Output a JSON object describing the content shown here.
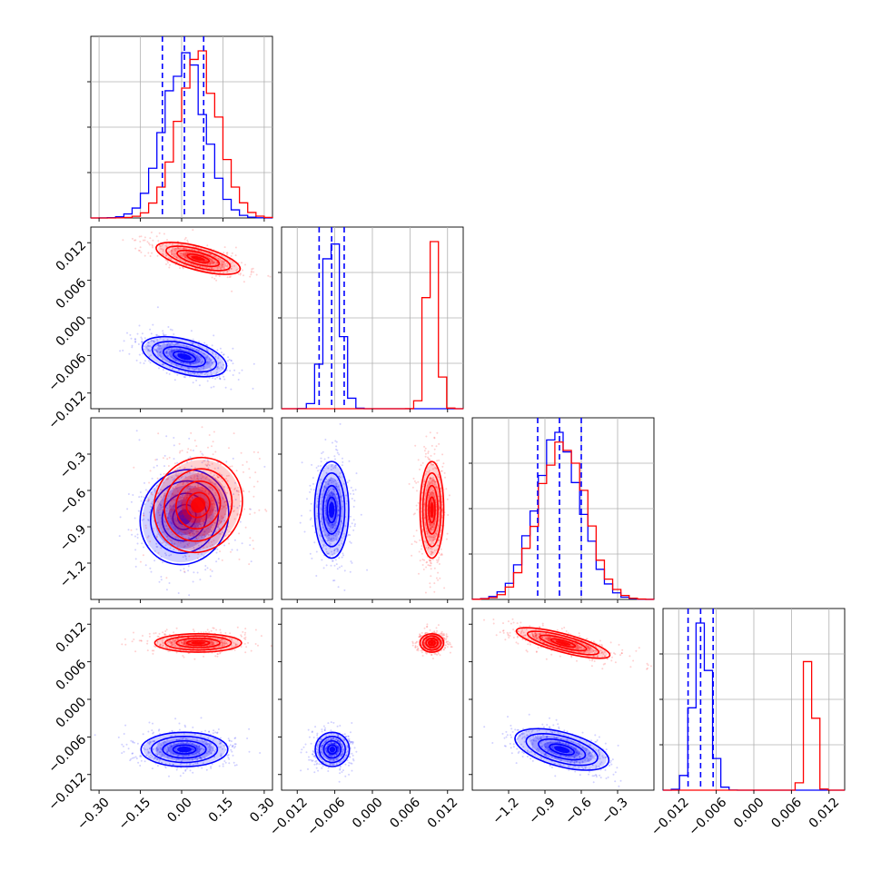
{
  "chart_data": {
    "type": "corner",
    "series": [
      {
        "name": "",
        "color": "#0000ff"
      },
      {
        "name": "",
        "color": "#ff0000"
      }
    ],
    "parameters": [
      {
        "range": [
          -0.33,
          0.33
        ],
        "ticks": [
          -0.3,
          -0.15,
          0.0,
          0.15,
          0.3
        ],
        "tick_labels": [
          "−0.30",
          "−0.15",
          "0.00",
          "0.15",
          "0.30"
        ]
      },
      {
        "range": [
          -0.0145,
          0.0145
        ],
        "ticks": [
          -0.012,
          -0.006,
          0.0,
          0.006,
          0.012
        ],
        "tick_labels": [
          "−0.012",
          "−0.006",
          "0.000",
          "0.006",
          "0.012"
        ]
      },
      {
        "range": [
          -1.5,
          0.0
        ],
        "ticks": [
          -1.2,
          -0.9,
          -0.6,
          -0.3
        ],
        "tick_labels": [
          "−1.2",
          "−0.9",
          "−0.6",
          "−0.3"
        ]
      },
      {
        "range": [
          -0.0145,
          0.0145
        ],
        "ticks": [
          -0.012,
          -0.006,
          0.0,
          0.006,
          0.012
        ],
        "tick_labels": [
          "−0.012",
          "−0.006",
          "0.000",
          "0.006",
          "0.012"
        ]
      }
    ],
    "quantiles_blue": [
      [
        -0.07,
        0.01,
        0.08
      ],
      [
        -0.0085,
        -0.0065,
        -0.0045
      ],
      [
        -0.96,
        -0.78,
        -0.6
      ],
      [
        -0.0105,
        -0.0085,
        -0.0065
      ]
    ],
    "distributions": {
      "blue": [
        {
          "mean": 0.01,
          "sd": 0.075
        },
        {
          "mean": -0.0064,
          "sd": 0.0013
        },
        {
          "mean": -0.79,
          "sd": 0.19
        },
        {
          "mean": -0.0083,
          "sd": 0.0013
        }
      ],
      "red": [
        {
          "mean": 0.06,
          "sd": 0.075
        },
        {
          "mean": 0.0095,
          "sd": 0.0009
        },
        {
          "mean": -0.76,
          "sd": 0.19
        },
        {
          "mean": 0.009,
          "sd": 0.0007
        }
      ]
    },
    "panels_2d": [
      {
        "row": 1,
        "col": 0,
        "blue_center": [
          0.01,
          -0.0062
        ],
        "red_center": [
          0.06,
          0.0095
        ]
      },
      {
        "row": 2,
        "col": 0,
        "blue_center": [
          0.01,
          -0.82
        ],
        "red_center": [
          0.06,
          -0.72
        ]
      },
      {
        "row": 2,
        "col": 1,
        "blue_center": [
          -0.0065,
          -0.76
        ],
        "red_center": [
          0.0095,
          -0.76
        ]
      },
      {
        "row": 3,
        "col": 0,
        "blue_center": [
          0.01,
          -0.008
        ],
        "red_center": [
          0.06,
          0.009
        ]
      },
      {
        "row": 3,
        "col": 1,
        "blue_center": [
          -0.0064,
          -0.008
        ],
        "red_center": [
          0.0095,
          0.009
        ]
      },
      {
        "row": 3,
        "col": 2,
        "blue_center": [
          -0.76,
          -0.008
        ],
        "red_center": [
          -0.75,
          0.009
        ]
      }
    ],
    "grid": true,
    "legend": "none",
    "title": "",
    "xlabel": "",
    "ylabel": ""
  }
}
